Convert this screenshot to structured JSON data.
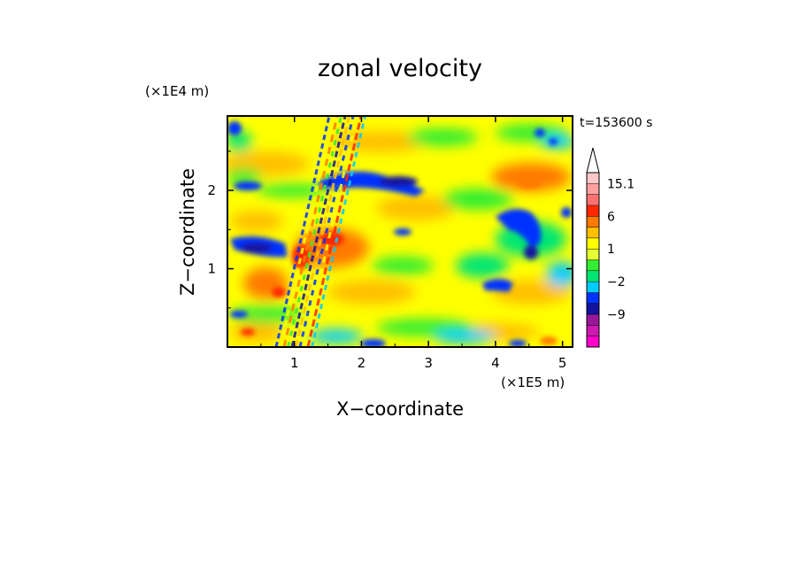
{
  "chart_data": {
    "type": "heatmap",
    "title": "zonal velocity",
    "xlabel": "X−coordinate",
    "ylabel": "Z−coordinate",
    "x_unit": "(×1E5 m)",
    "y_unit": "(×1E4 m)",
    "time_label": "t=153600 s",
    "xlim": [
      0,
      5.15
    ],
    "ylim": [
      0,
      2.95
    ],
    "x_ticks": [
      1,
      2,
      3,
      4,
      5
    ],
    "y_ticks": [
      1,
      2
    ],
    "colorbar": {
      "tick_labels": [
        {
          "label": "15.1",
          "level": 15.1
        },
        {
          "label": "6",
          "level": 6
        },
        {
          "label": "1",
          "level": 1
        },
        {
          "label": "−2",
          "level": -2
        },
        {
          "label": "−9",
          "level": -9
        }
      ],
      "levels": [
        -15,
        -12,
        -9,
        -6,
        -4,
        -2,
        -1,
        0,
        1,
        2,
        4,
        6,
        9,
        12,
        15.1
      ],
      "colors": [
        "#ff00cc",
        "#cc1ab0",
        "#99189a",
        "#12129e",
        "#0033ff",
        "#00ccff",
        "#00e673",
        "#33ee33",
        "#e6ff33",
        "#ffff00",
        "#ffc000",
        "#ff7a00",
        "#ff2800",
        "#ff7070",
        "#ffa0a0",
        "#ffc8c8"
      ],
      "extend": "max"
    },
    "grid": false
  }
}
